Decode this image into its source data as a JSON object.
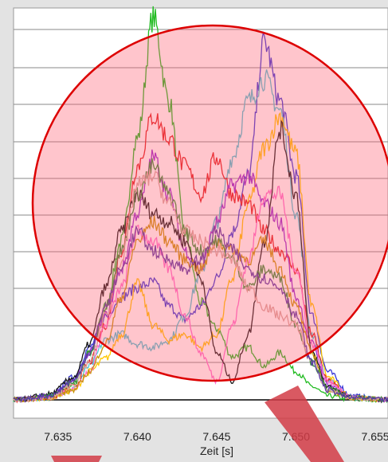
{
  "chart_data": {
    "type": "line",
    "title": "",
    "xlabel": "Zeit [s]",
    "ylabel": "",
    "xlim": [
      7.6322,
      7.6558
    ],
    "ylim": [
      -1,
      21
    ],
    "grid": true,
    "legend": "none",
    "x_ticks": [
      7.635,
      7.64,
      7.645,
      7.65,
      7.655
    ],
    "x_tick_labels": [
      "7.635",
      "7.640",
      "7.645",
      "7.650",
      "7.655"
    ],
    "x": [
      7.6325,
      7.6345,
      7.636,
      7.637,
      7.638,
      7.639,
      7.64,
      7.641,
      7.642,
      7.643,
      7.644,
      7.645,
      7.646,
      7.647,
      7.648,
      7.649,
      7.65,
      7.651,
      7.652,
      7.6535,
      7.6555
    ],
    "series": [
      {
        "color": "#22bb22",
        "values": [
          0,
          0.1,
          0.8,
          2.5,
          5,
          8.5,
          14,
          20.5,
          16,
          9,
          5.2,
          3.8,
          2.3,
          2.8,
          1.8,
          2.5,
          1.5,
          0.7,
          0.2,
          0,
          0
        ]
      },
      {
        "color": "#3a3ad8",
        "values": [
          0,
          0.2,
          1.2,
          2.8,
          4.5,
          5.5,
          6,
          6.3,
          5,
          4.3,
          5,
          6.5,
          9,
          12,
          19.2,
          16,
          12,
          4.5,
          1.5,
          0.2,
          0
        ]
      },
      {
        "color": "#4cc6d6",
        "values": [
          0,
          0.1,
          0.6,
          1.8,
          3.2,
          3.5,
          3,
          2.8,
          3.2,
          4.5,
          6.8,
          9.5,
          13,
          16,
          17.2,
          15.5,
          10,
          3.5,
          1,
          0.1,
          0
        ]
      },
      {
        "color": "#ffc800",
        "values": [
          0,
          0.1,
          0.5,
          1.5,
          2.2,
          3.5,
          6.2,
          4,
          3.2,
          3.5,
          2.8,
          3.5,
          6.5,
          10.5,
          13.5,
          15.2,
          13.2,
          5,
          1.2,
          0.1,
          0
        ]
      },
      {
        "color": "#e02020",
        "values": [
          0,
          0.1,
          0.7,
          2,
          4,
          8,
          12.5,
          15.2,
          14,
          12.5,
          11,
          13,
          11,
          10.5,
          9,
          8,
          7,
          3.5,
          1,
          0.1,
          0
        ]
      },
      {
        "color": "#9a2ad0",
        "values": [
          0,
          0.2,
          1,
          2.5,
          4.5,
          7,
          10,
          13,
          11,
          8,
          7,
          9.5,
          11.5,
          12,
          10.5,
          9.5,
          5.5,
          3,
          0.8,
          0.1,
          0
        ]
      },
      {
        "color": "#ff70d0",
        "values": [
          0,
          0.1,
          0.6,
          1.5,
          4,
          6,
          9,
          8.5,
          7,
          4.5,
          2.5,
          1,
          4,
          7.5,
          11,
          11,
          7,
          3,
          1,
          0.1,
          0
        ]
      },
      {
        "color": "#1a1a1a",
        "values": [
          0,
          0.3,
          1.2,
          3,
          6,
          9,
          11,
          10,
          9.5,
          8.5,
          6.5,
          2.5,
          1,
          3.5,
          8.5,
          14.5,
          11,
          2.5,
          0.7,
          0.1,
          0
        ]
      },
      {
        "color": "#c8960a",
        "values": [
          0,
          0.1,
          0.5,
          1.5,
          3,
          5.5,
          8.5,
          9.5,
          8.5,
          7.5,
          7,
          8.5,
          8,
          7.5,
          8.5,
          7,
          5,
          2.5,
          0.5,
          0.1,
          0
        ]
      },
      {
        "color": "#3a8f3a",
        "values": [
          0,
          0.2,
          0.9,
          2.5,
          5,
          8,
          11,
          12.5,
          11,
          9,
          8,
          8.5,
          7.5,
          6,
          7,
          6.5,
          4,
          2,
          0.6,
          0.1,
          0
        ]
      },
      {
        "color": "#d9a8a0",
        "values": [
          0,
          0.1,
          0.8,
          2,
          4.5,
          7.5,
          11.5,
          12,
          10.5,
          9,
          8.5,
          8,
          7.5,
          6,
          5,
          4.5,
          4,
          2,
          0.5,
          0.1,
          0
        ]
      },
      {
        "color": "#5a3aa8",
        "values": [
          0,
          0.2,
          1,
          2.5,
          5,
          7,
          9,
          8,
          7.5,
          7,
          7.5,
          9,
          8,
          7,
          6.5,
          6,
          4.5,
          2,
          0.5,
          0.1,
          0
        ]
      }
    ]
  },
  "overlays": {
    "circle_color": "#dd0000",
    "circle_fill": "rgba(255,90,110,0.35)",
    "arrow_color": "rgba(210,60,70,0.85)"
  }
}
